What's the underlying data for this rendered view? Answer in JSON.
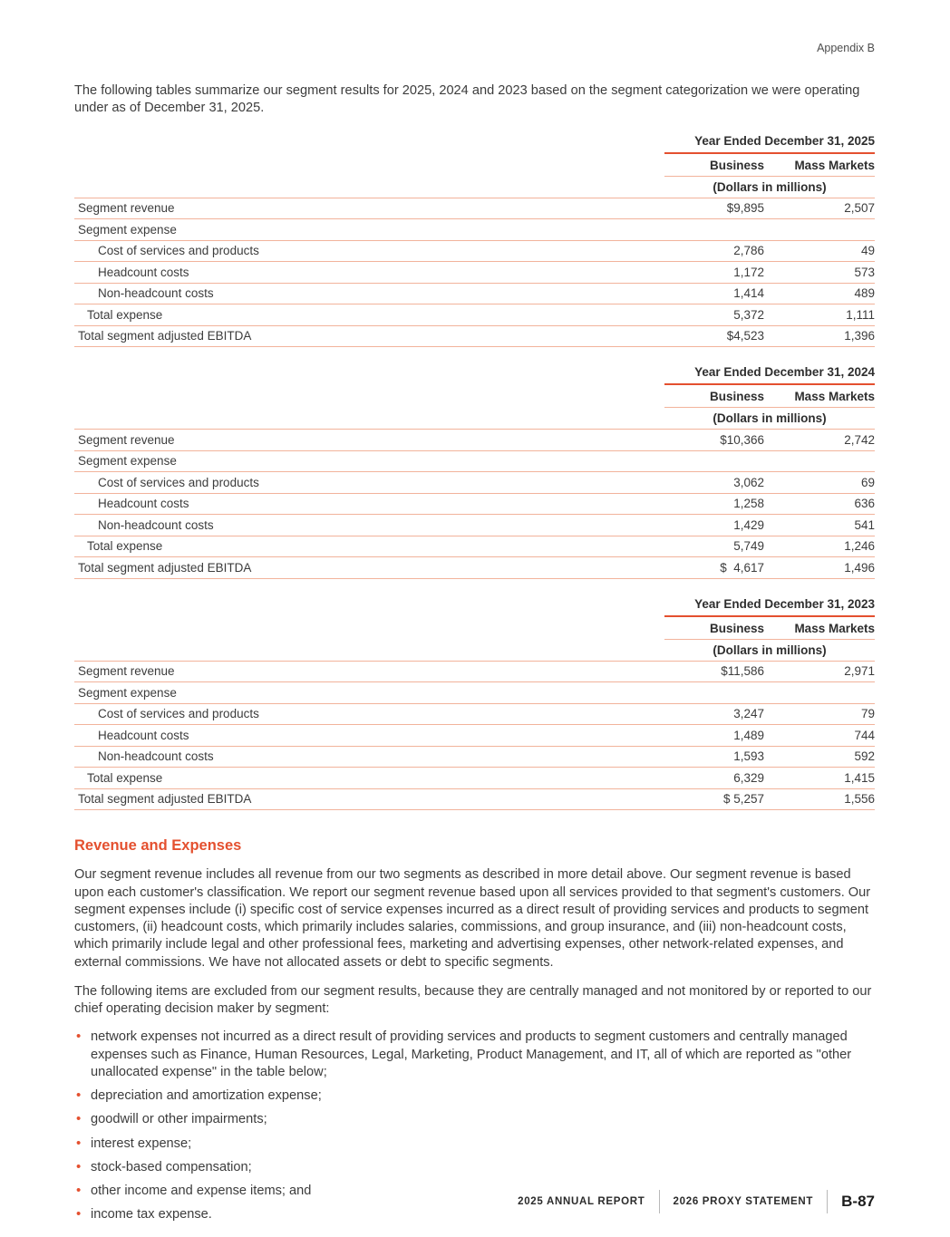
{
  "colors": {
    "accent": "#E4502F",
    "rule_light": "#F2B39B"
  },
  "page": {
    "header_right": "Appendix B",
    "intro": "The following tables summarize our segment results for 2025, 2024 and 2023 based on the segment categorization we were operating under as of December 31, 2025."
  },
  "tables": [
    {
      "title": "Year Ended December 31, 2025",
      "columns": [
        "Business",
        "Mass Markets"
      ],
      "units": "(Dollars in millions)",
      "rows": [
        {
          "label": "Segment revenue",
          "indent": 0,
          "values": [
            "$9,895",
            "2,507"
          ]
        },
        {
          "label": "Segment expense",
          "indent": 0,
          "values": [
            "",
            ""
          ]
        },
        {
          "label": "Cost of services and products",
          "indent": 2,
          "values": [
            "2,786",
            "49"
          ]
        },
        {
          "label": "Headcount costs",
          "indent": 2,
          "values": [
            "1,172",
            "573"
          ]
        },
        {
          "label": "Non-headcount costs",
          "indent": 2,
          "values": [
            "1,414",
            "489"
          ]
        },
        {
          "label": "Total expense",
          "indent": 1,
          "values": [
            "5,372",
            "1,111"
          ]
        },
        {
          "label": "Total segment adjusted EBITDA",
          "indent": 0,
          "values": [
            "$4,523",
            "1,396"
          ]
        }
      ]
    },
    {
      "title": "Year Ended December 31, 2024",
      "columns": [
        "Business",
        "Mass Markets"
      ],
      "units": "(Dollars in millions)",
      "rows": [
        {
          "label": "Segment revenue",
          "indent": 0,
          "values": [
            "$10,366",
            "2,742"
          ]
        },
        {
          "label": "Segment expense",
          "indent": 0,
          "values": [
            "",
            ""
          ]
        },
        {
          "label": "Cost of services and products",
          "indent": 2,
          "values": [
            "3,062",
            "69"
          ]
        },
        {
          "label": "Headcount costs",
          "indent": 2,
          "values": [
            "1,258",
            "636"
          ]
        },
        {
          "label": "Non-headcount costs",
          "indent": 2,
          "values": [
            "1,429",
            "541"
          ]
        },
        {
          "label": "Total expense",
          "indent": 1,
          "values": [
            "5,749",
            "1,246"
          ]
        },
        {
          "label": "Total segment adjusted EBITDA",
          "indent": 0,
          "values": [
            "$  4,617",
            "1,496"
          ]
        }
      ]
    },
    {
      "title": "Year Ended December 31, 2023",
      "columns": [
        "Business",
        "Mass Markets"
      ],
      "units": "(Dollars in millions)",
      "rows": [
        {
          "label": "Segment revenue",
          "indent": 0,
          "values": [
            "$11,586",
            "2,971"
          ]
        },
        {
          "label": "Segment expense",
          "indent": 0,
          "values": [
            "",
            ""
          ]
        },
        {
          "label": "Cost of services and products",
          "indent": 2,
          "values": [
            "3,247",
            "79"
          ]
        },
        {
          "label": "Headcount costs",
          "indent": 2,
          "values": [
            "1,489",
            "744"
          ]
        },
        {
          "label": "Non-headcount costs",
          "indent": 2,
          "values": [
            "1,593",
            "592"
          ]
        },
        {
          "label": "Total expense",
          "indent": 1,
          "values": [
            "6,329",
            "1,415"
          ]
        },
        {
          "label": "Total segment adjusted EBITDA",
          "indent": 0,
          "values": [
            "$ 5,257",
            "1,556"
          ]
        }
      ]
    }
  ],
  "section": {
    "heading": "Revenue and Expenses",
    "para1": "Our segment revenue includes all revenue from our two segments as described in more detail above. Our segment revenue is based upon each customer's classification. We report our segment revenue based upon all services provided to that segment's customers. Our segment expenses include (i) specific cost of service expenses incurred as a direct result of providing services and products to segment customers, (ii) headcount costs, which primarily includes salaries, commissions, and group insurance, and (iii) non-headcount costs, which primarily include legal and other professional fees, marketing and advertising expenses, other network-related expenses, and external commissions. We have not allocated assets or debt to specific segments.",
    "para2": "The following items are excluded from our segment results, because they are centrally managed and not monitored by or reported to our chief operating decision maker by segment:",
    "bullets": [
      "network expenses not incurred as a direct result of providing services and products to segment customers and centrally managed expenses such as Finance, Human Resources, Legal, Marketing, Product Management, and IT, all of which are reported as \"other unallocated expense\" in the table below;",
      "depreciation and amortization expense;",
      "goodwill or other impairments;",
      "interest expense;",
      "stock-based compensation;",
      "other income and expense items; and",
      "income tax expense."
    ]
  },
  "footer": {
    "items": [
      "2025 ANNUAL REPORT",
      "2026 PROXY STATEMENT"
    ],
    "page_number": "B-87"
  }
}
